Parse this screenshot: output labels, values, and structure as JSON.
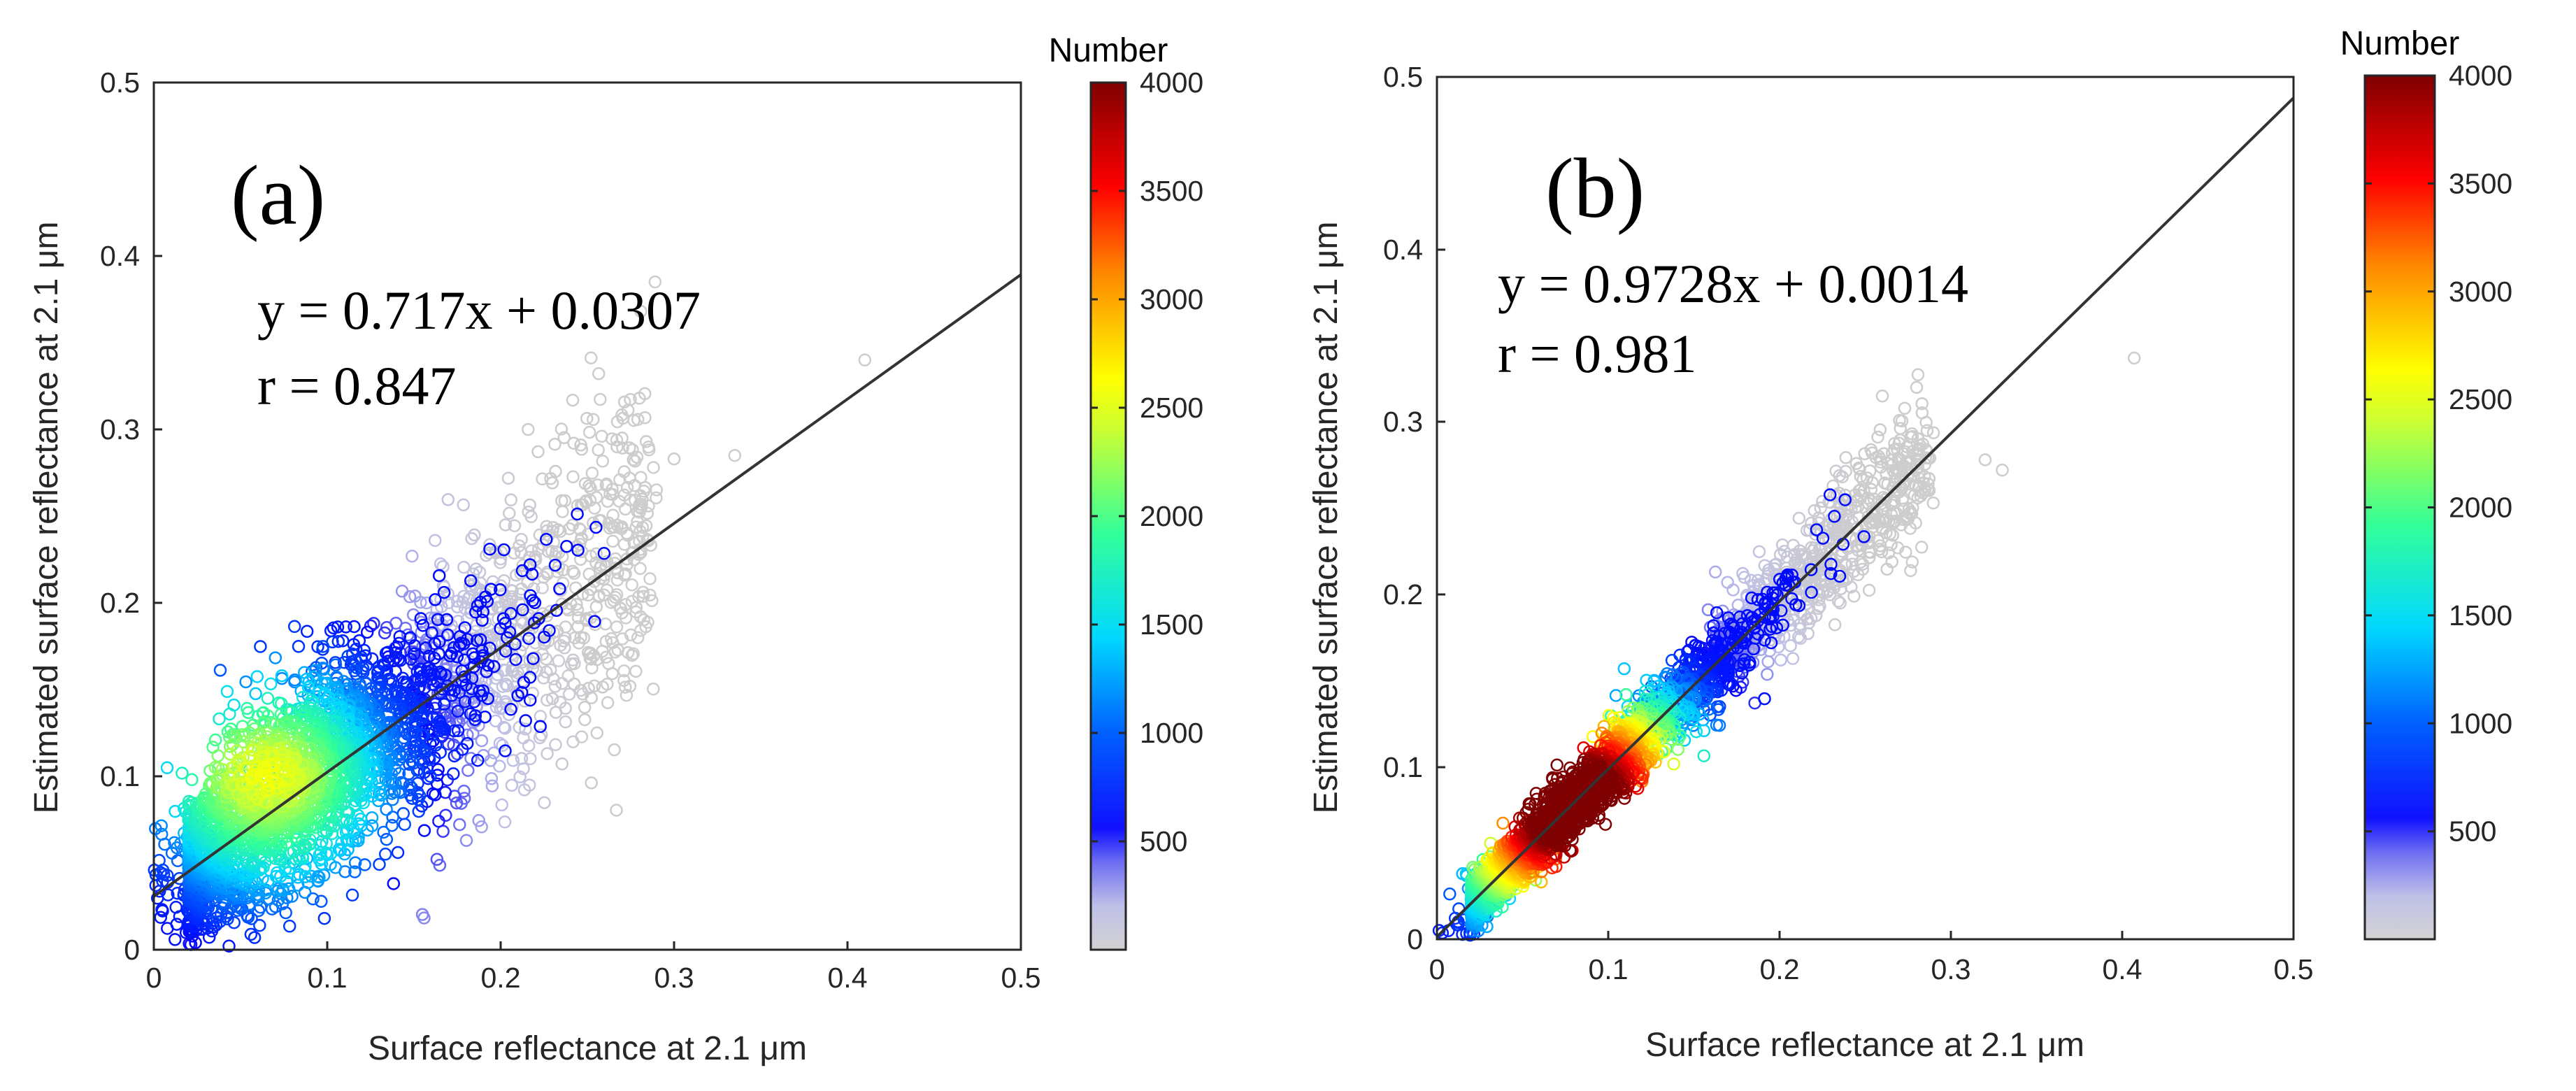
{
  "colorbar_colors": {
    "gray": "#c8c8c8",
    "blue": "#0000ff",
    "cyan": "#00d8ff",
    "green": "#33ff66",
    "yellow": "#ffff00",
    "orange": "#ff9900",
    "red": "#ff0000",
    "darkred": "#7f0000",
    "regression_line": "#333333"
  },
  "chart_data": [
    {
      "type": "scatter",
      "panel_label": "(a)",
      "equation": "y = 0.717x + 0.0307",
      "correlation": "r = 0.847",
      "xlabel": "Surface reflectance at 2.1 μm",
      "ylabel": "Estimated surface reflectance at 2.1 μm",
      "xlim": [
        0,
        0.5
      ],
      "ylim": [
        0,
        0.5
      ],
      "x_ticks": [
        "0",
        "0.1",
        "0.2",
        "0.3",
        "0.4",
        "0.5"
      ],
      "y_ticks": [
        "0",
        "0.1",
        "0.2",
        "0.3",
        "0.4",
        "0.5"
      ],
      "regression": {
        "slope": 0.717,
        "intercept": 0.0307
      },
      "density_center": {
        "x": 0.065,
        "y": 0.1
      },
      "outliers": [
        [
          0.41,
          0.34
        ],
        [
          0.28,
          0.318
        ],
        [
          0.335,
          0.285
        ],
        [
          0.27,
          0.295
        ],
        [
          0.3,
          0.283
        ]
      ],
      "colorbar": {
        "title": "Number",
        "min": 0,
        "max": 4000,
        "ticks": [
          "500",
          "1000",
          "1500",
          "2000",
          "2500",
          "3000",
          "3500",
          "4000"
        ]
      }
    },
    {
      "type": "scatter",
      "panel_label": "(b)",
      "equation": "y = 0.9728x + 0.0014",
      "correlation": "r = 0.981",
      "xlabel": "Surface reflectance at 2.1 μm",
      "ylabel": "Estimated surface reflectance at 2.1 μm",
      "xlim": [
        0,
        0.5
      ],
      "ylim": [
        0,
        0.5
      ],
      "x_ticks": [
        "0",
        "0.1",
        "0.2",
        "0.3",
        "0.4",
        "0.5"
      ],
      "y_ticks": [
        "0",
        "0.1",
        "0.2",
        "0.3",
        "0.4",
        "0.5"
      ],
      "regression": {
        "slope": 0.9728,
        "intercept": 0.0014
      },
      "density_center": {
        "x": 0.08,
        "y": 0.078
      },
      "outliers": [
        [
          0.407,
          0.337
        ],
        [
          0.26,
          0.315
        ],
        [
          0.28,
          0.32
        ],
        [
          0.32,
          0.278
        ],
        [
          0.33,
          0.272
        ]
      ],
      "colorbar": {
        "title": "Number",
        "min": 0,
        "max": 4000,
        "ticks": [
          "500",
          "1000",
          "1500",
          "2000",
          "2500",
          "3000",
          "3500",
          "4000"
        ]
      }
    }
  ]
}
